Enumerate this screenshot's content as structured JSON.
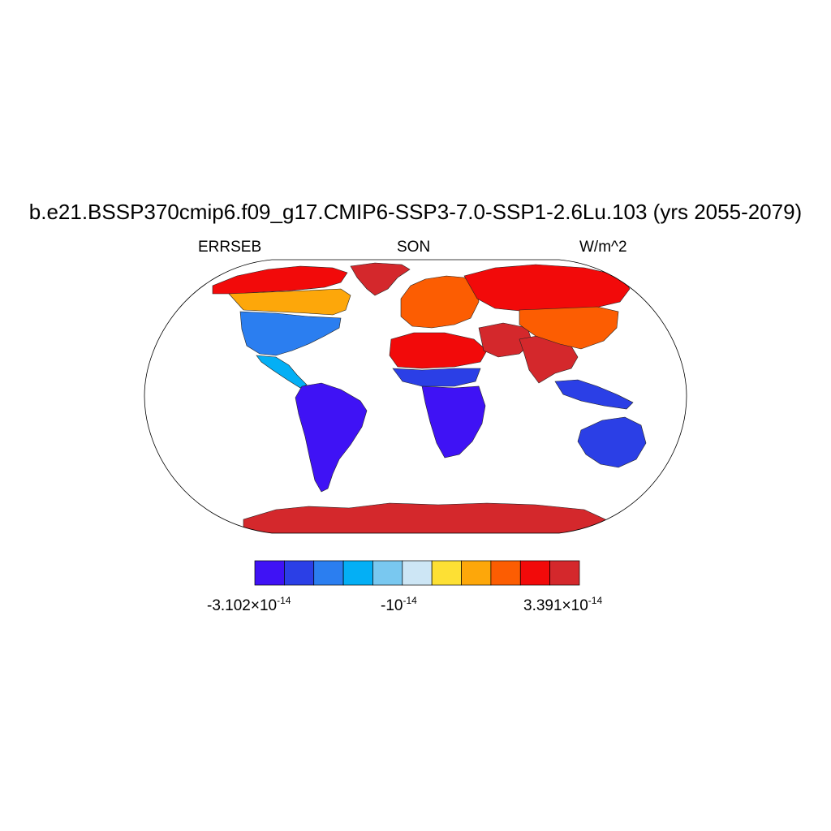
{
  "title": "b.e21.BSSP370cmip6.f09_g17.CMIP6-SSP3-7.0-SSP1-2.6Lu.103 (yrs 2055-2079)",
  "left_label": "ERRSEB",
  "center_label": "SON",
  "right_label": "W/m^2",
  "projection": "Robinson",
  "colorbar": {
    "colors": [
      "#3f12f5",
      "#2b3fe6",
      "#2b7ef0",
      "#04aff5",
      "#79c8f0",
      "#cde6f5",
      "#fde034",
      "#fda70a",
      "#fc5d02",
      "#f20a0a",
      "#d4282c"
    ],
    "labels": {
      "min": {
        "mantissa": "-3.102",
        "times": "×",
        "base": "10",
        "exp": "-14"
      },
      "mid": {
        "mantissa": "-",
        "base": "10",
        "exp": "-14"
      },
      "max": {
        "mantissa": "3.391",
        "times": "×",
        "base": "10",
        "exp": "-14"
      }
    }
  },
  "regions": [
    {
      "name": "north-america-arctic",
      "color": "#f20a0a"
    },
    {
      "name": "north-america-boreal",
      "color": "#fda70a"
    },
    {
      "name": "north-america-central",
      "color": "#2b7ef0"
    },
    {
      "name": "central-america",
      "color": "#04aff5"
    },
    {
      "name": "greenland",
      "color": "#d4282c"
    },
    {
      "name": "south-america",
      "color": "#3f12f5"
    },
    {
      "name": "europe",
      "color": "#fc5d02"
    },
    {
      "name": "siberia",
      "color": "#f20a0a"
    },
    {
      "name": "north-africa",
      "color": "#f20a0a"
    },
    {
      "name": "middle-east",
      "color": "#d4282c"
    },
    {
      "name": "south-asia",
      "color": "#d4282c"
    },
    {
      "name": "east-asia",
      "color": "#fc5d02"
    },
    {
      "name": "sahel",
      "color": "#2b3fe6"
    },
    {
      "name": "central-africa",
      "color": "#3f12f5"
    },
    {
      "name": "southeast-asia",
      "color": "#2b3fe6"
    },
    {
      "name": "australia",
      "color": "#2b3fe6"
    },
    {
      "name": "antarctica",
      "color": "#d4282c"
    }
  ]
}
